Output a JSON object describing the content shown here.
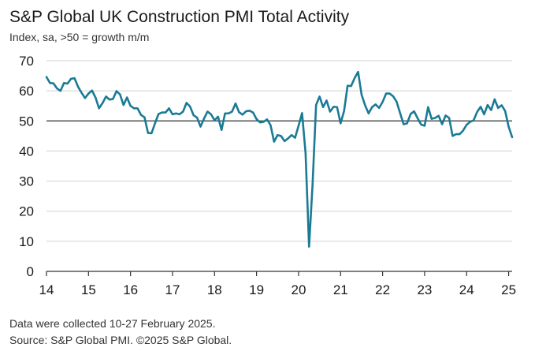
{
  "title": "S&P Global UK Construction PMI Total Activity",
  "subtitle": "Index, sa, >50 = growth m/m",
  "notes": {
    "collected": "Data were collected 10-27 February 2025.",
    "source": "Source: S&P Global PMI. ©2025 S&P Global."
  },
  "colors": {
    "line": "#1b7a94",
    "grid": "#d0d0d0",
    "reference": "#333333",
    "axis": "#333333"
  },
  "chart_data": {
    "type": "line",
    "title": "S&P Global UK Construction PMI Total Activity",
    "subtitle": "Index, sa, >50 = growth m/m",
    "ylim": [
      0,
      70
    ],
    "yticks": [
      0,
      10,
      20,
      30,
      40,
      50,
      60,
      70
    ],
    "ytick_labels": [
      "0",
      "10",
      "20",
      "30",
      "40",
      "50",
      "60",
      "70"
    ],
    "xlim": [
      2014,
      2025.083
    ],
    "xticks": [
      2014,
      2015,
      2016,
      2017,
      2018,
      2019,
      2020,
      2021,
      2022,
      2023,
      2024,
      2025
    ],
    "xtick_labels": [
      "14",
      "15",
      "16",
      "17",
      "18",
      "19",
      "20",
      "21",
      "22",
      "23",
      "24",
      "25"
    ],
    "reference_line": 50,
    "grid": true,
    "legend": "none",
    "series": [
      {
        "start": "2014-01",
        "frequency": "monthly",
        "values": [
          64.6,
          62.6,
          62.5,
          60.8,
          60.0,
          62.6,
          62.4,
          64.0,
          64.2,
          61.4,
          59.4,
          57.6,
          59.1,
          60.1,
          57.8,
          54.2,
          55.9,
          58.1,
          57.1,
          57.3,
          59.9,
          58.8,
          55.3,
          57.8,
          55.0,
          54.2,
          54.2,
          52.0,
          51.2,
          46.0,
          45.9,
          49.2,
          52.3,
          52.8,
          52.8,
          54.2,
          52.2,
          52.5,
          52.2,
          53.1,
          56.0,
          54.8,
          51.9,
          51.1,
          48.1,
          50.8,
          53.1,
          52.2,
          50.2,
          51.4,
          47.0,
          52.5,
          52.5,
          53.1,
          55.8,
          52.9,
          52.1,
          53.2,
          53.4,
          52.8,
          50.6,
          49.5,
          49.7,
          50.5,
          48.6,
          43.1,
          45.3,
          45.0,
          43.3,
          44.2,
          45.3,
          44.4,
          48.4,
          52.6,
          39.3,
          8.2,
          28.9,
          55.3,
          58.1,
          54.6,
          56.8,
          53.1,
          54.7,
          54.6,
          49.2,
          53.3,
          61.7,
          61.6,
          64.2,
          66.3,
          58.7,
          55.2,
          52.5,
          54.6,
          55.5,
          54.3,
          56.3,
          59.1,
          59.1,
          58.2,
          56.4,
          52.6,
          48.9,
          49.2,
          52.3,
          53.2,
          50.9,
          48.8,
          48.4,
          54.6,
          50.7,
          51.0,
          51.7,
          48.9,
          51.8,
          51.0,
          45.0,
          45.6,
          45.6,
          46.8,
          48.7,
          49.7,
          50.2,
          53.0,
          54.7,
          52.2,
          55.3,
          53.6,
          57.2,
          54.3,
          55.2,
          53.3,
          48.1,
          44.6
        ]
      }
    ]
  }
}
